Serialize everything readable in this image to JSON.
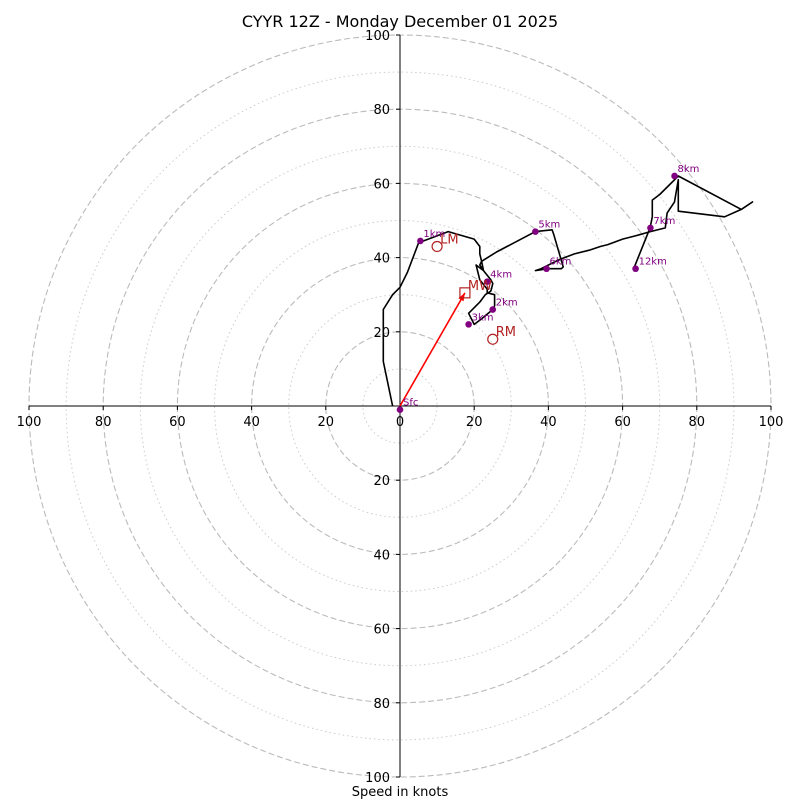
{
  "chart_data": {
    "type": "scatter",
    "title": "CYYR 12Z - Monday December 01 2025",
    "xlabel": "Speed in knots",
    "ylabel": "",
    "xlim": [
      -100,
      100
    ],
    "ylim": [
      -100,
      100
    ],
    "rings": [
      20,
      40,
      60,
      80,
      100
    ],
    "minor_rings": [
      10,
      30,
      50,
      70,
      90
    ],
    "tick_labels": {
      "x": [
        "100",
        "80",
        "60",
        "40",
        "20",
        "0",
        "20",
        "40",
        "60",
        "80",
        "100"
      ],
      "y_top": [
        "20",
        "40",
        "60",
        "80",
        "100"
      ],
      "y_bottom": [
        "20",
        "40",
        "60",
        "80",
        "100"
      ]
    },
    "colors": {
      "hodograph": "#000000",
      "height_marker": "#800080",
      "storm_motion": "#b22222",
      "mean_wind_arrow": "#ff0000",
      "rings": "#bbbbbb"
    },
    "hodograph": {
      "x": [
        -2,
        -4.5,
        -4.5,
        -2,
        0,
        2,
        5,
        13,
        20,
        21.5,
        21.5,
        22,
        22.5,
        20.5,
        21.5,
        23.5,
        23.5,
        25.5,
        25.5,
        25,
        22,
        20,
        18.5,
        21.5,
        23,
        24.5,
        25,
        24.5,
        22.5,
        21.5,
        22,
        26,
        36.5,
        41,
        41.5,
        44,
        43.5,
        40,
        36.5,
        38,
        43,
        47,
        51,
        54,
        56,
        60,
        64,
        67.5,
        71.5,
        72,
        74,
        75,
        75,
        87.5,
        92,
        95,
        92,
        75,
        70,
        68,
        68,
        67.5,
        67,
        65,
        63
      ],
      "y": [
        0,
        12,
        26,
        30,
        32,
        36,
        44,
        47,
        45,
        43,
        41,
        39,
        36.5,
        38,
        34,
        31.5,
        30.5,
        30,
        27,
        26,
        23.5,
        22,
        25,
        28,
        30,
        31,
        33,
        34,
        36.5,
        38,
        39,
        41.5,
        47,
        47.5,
        46,
        37.5,
        37,
        37,
        36.5,
        37,
        39.5,
        41,
        42,
        43,
        43.5,
        45,
        46,
        47,
        48,
        52,
        55,
        61,
        52.5,
        51,
        53,
        55,
        53,
        62,
        57,
        55.5,
        51,
        48.5,
        47,
        42,
        37
      ]
    },
    "height_markers": [
      {
        "label": "Sfc",
        "x": 0,
        "y": -1
      },
      {
        "label": "1km",
        "x": 5.5,
        "y": 44.5
      },
      {
        "label": "2km",
        "x": 25,
        "y": 26
      },
      {
        "label": "3km",
        "x": 18.5,
        "y": 22
      },
      {
        "label": "4km",
        "x": 23.5,
        "y": 33.5
      },
      {
        "label": "5km",
        "x": 36.5,
        "y": 47
      },
      {
        "label": "6km",
        "x": 39.5,
        "y": 37
      },
      {
        "label": "7km",
        "x": 67.5,
        "y": 48
      },
      {
        "label": "8km",
        "x": 74,
        "y": 62
      },
      {
        "label": "12km",
        "x": 63.5,
        "y": 37
      }
    ],
    "storm_motion": [
      {
        "label": "LM",
        "x": 10,
        "y": 43,
        "marker": "circle"
      },
      {
        "label": "MW",
        "x": 17.5,
        "y": 30.5,
        "marker": "square"
      },
      {
        "label": "RM",
        "x": 25,
        "y": 18,
        "marker": "circle"
      }
    ],
    "mean_wind_arrow": {
      "x0": 0,
      "y0": 0,
      "x1": 17.5,
      "y1": 30.5
    }
  }
}
